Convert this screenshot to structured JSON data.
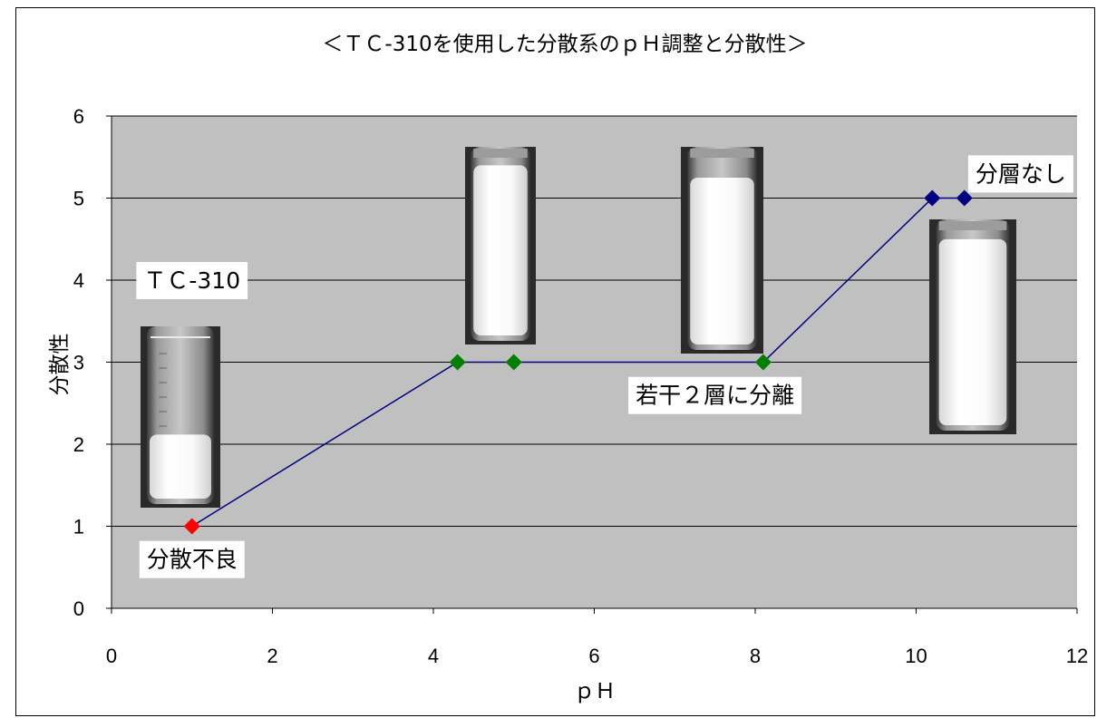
{
  "chart_data": {
    "type": "line",
    "title": "＜ＴＣ-310を使用した分散系のｐＨ調整と分散性＞",
    "xlabel": "ｐＨ",
    "ylabel": "分散性",
    "xlim": [
      0,
      12
    ],
    "ylim": [
      0,
      6
    ],
    "x_ticks": [
      "0",
      "2",
      "4",
      "6",
      "8",
      "10",
      "12"
    ],
    "y_ticks": [
      "0",
      "1",
      "2",
      "3",
      "4",
      "5",
      "6"
    ],
    "grid": "horizontal",
    "plot_background": "#c0c0c0",
    "line_color": "#000080",
    "x": [
      1.0,
      4.3,
      5.0,
      8.1,
      10.2,
      10.6
    ],
    "y": [
      1,
      3,
      3,
      3,
      5,
      5
    ],
    "point_colors": [
      "#ff0000",
      "#008000",
      "#008000",
      "#008000",
      "#000080",
      "#000080"
    ],
    "annotations": [
      {
        "text": "ＴＣ-310",
        "x": 1.0,
        "y": 4.0
      },
      {
        "text": "分散不良",
        "x": 1.0,
        "y": 0.6
      },
      {
        "text": "若干２層に分離",
        "x": 7.5,
        "y": 2.6
      },
      {
        "text": "分層なし",
        "x": 11.3,
        "y": 5.3
      }
    ],
    "images": [
      {
        "name": "test-tube-tc310",
        "fill_level": 0.38,
        "clear_top": true
      },
      {
        "name": "test-tube-ph4",
        "fill_level": 0.92,
        "clear_top": false
      },
      {
        "name": "test-tube-ph8",
        "fill_level": 0.86,
        "clear_top": false
      },
      {
        "name": "test-tube-ph10",
        "fill_level": 0.92,
        "clear_top": false
      }
    ]
  }
}
